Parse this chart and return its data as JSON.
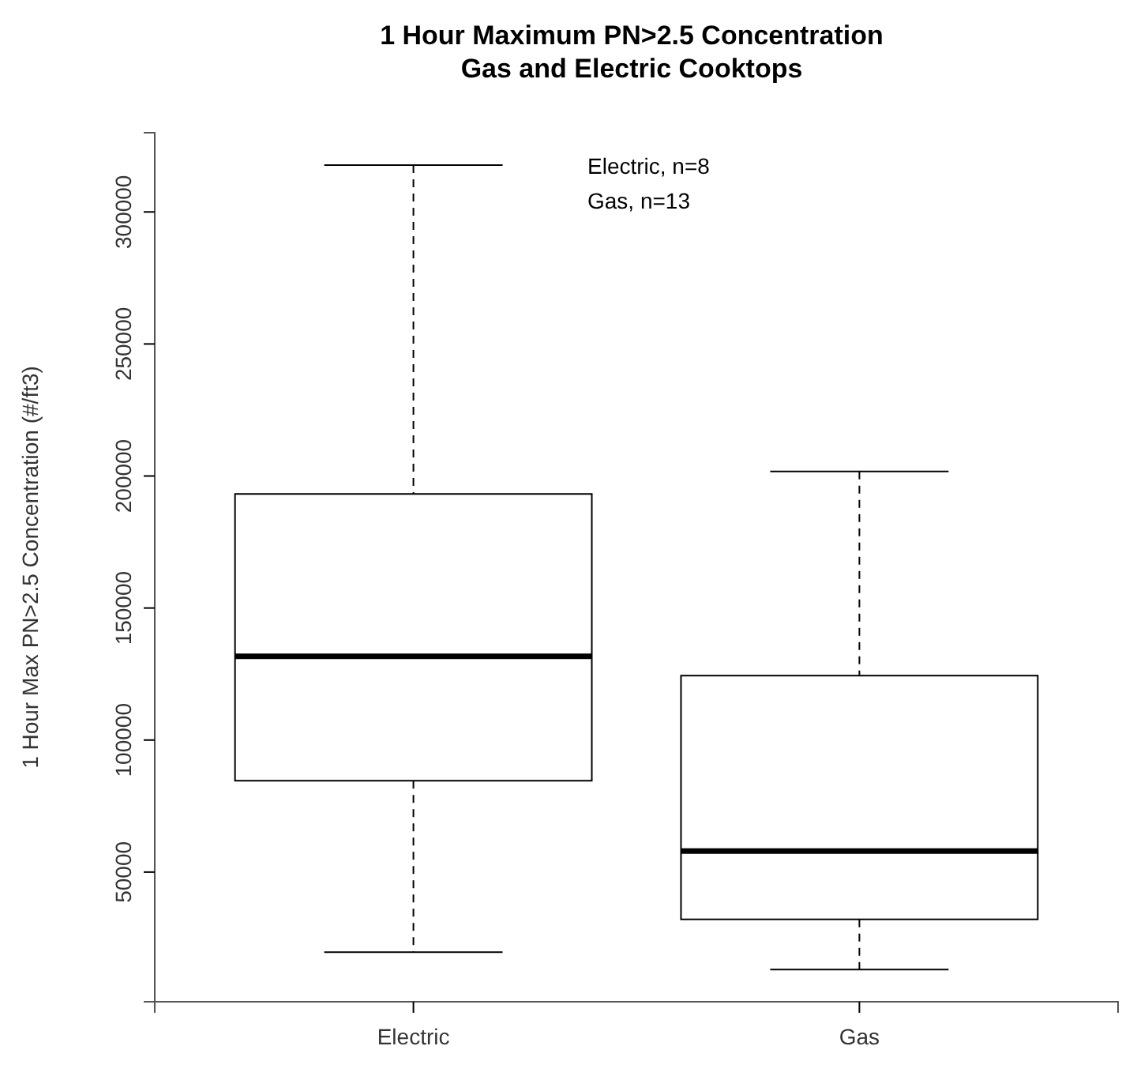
{
  "chart_data": {
    "type": "box",
    "title": "1 Hour Maximum PN>2.5 Concentration",
    "subtitle": "Gas and Electric Cooktops",
    "ylabel": "1 Hour Max PN>2.5 Concentration (#/ft3)",
    "categories": [
      "Electric",
      "Gas"
    ],
    "boxes": [
      {
        "low": 19700,
        "q1": 84600,
        "median": 131700,
        "q3": 193200,
        "high": 317700
      },
      {
        "low": 13100,
        "q1": 32100,
        "median": 58000,
        "q3": 124400,
        "high": 201700
      }
    ],
    "color": "#000000",
    "ylim": [
      900,
      330000
    ],
    "yticks": [
      50000,
      100000,
      150000,
      200000,
      250000,
      300000
    ],
    "grid": false,
    "annotations": [
      "Electric, n=8",
      "Gas, n=13"
    ]
  }
}
